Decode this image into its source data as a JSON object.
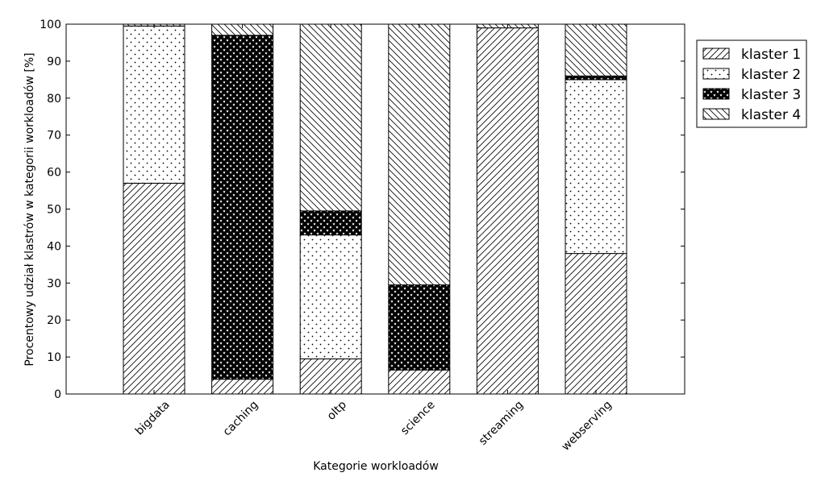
{
  "chart_data": {
    "type": "bar",
    "stacked": true,
    "categories": [
      "bigdata",
      "caching",
      "oltp",
      "science",
      "streaming",
      "webserving"
    ],
    "series": [
      {
        "name": "klaster 1",
        "pattern": "diagonal-up",
        "values": [
          57,
          4,
          9.5,
          6.5,
          99,
          38
        ]
      },
      {
        "name": "klaster 2",
        "pattern": "dots",
        "values": [
          42.5,
          0,
          33.5,
          0,
          0,
          47
        ]
      },
      {
        "name": "klaster 3",
        "pattern": "stars",
        "values": [
          0,
          93,
          6.5,
          23,
          0,
          1
        ]
      },
      {
        "name": "klaster 4",
        "pattern": "diagonal-down",
        "values": [
          0.5,
          3,
          50.5,
          70.5,
          1,
          14
        ]
      }
    ],
    "xlabel": "Kategorie workloadów",
    "ylabel": "Procentowy udział klastrów w kategorii workloadów [%]",
    "ylim": [
      0,
      100
    ],
    "yticks": [
      "0",
      "10",
      "20",
      "30",
      "40",
      "50",
      "60",
      "70",
      "80",
      "90",
      "100"
    ],
    "legend": "top-right, outside",
    "grid": false
  }
}
